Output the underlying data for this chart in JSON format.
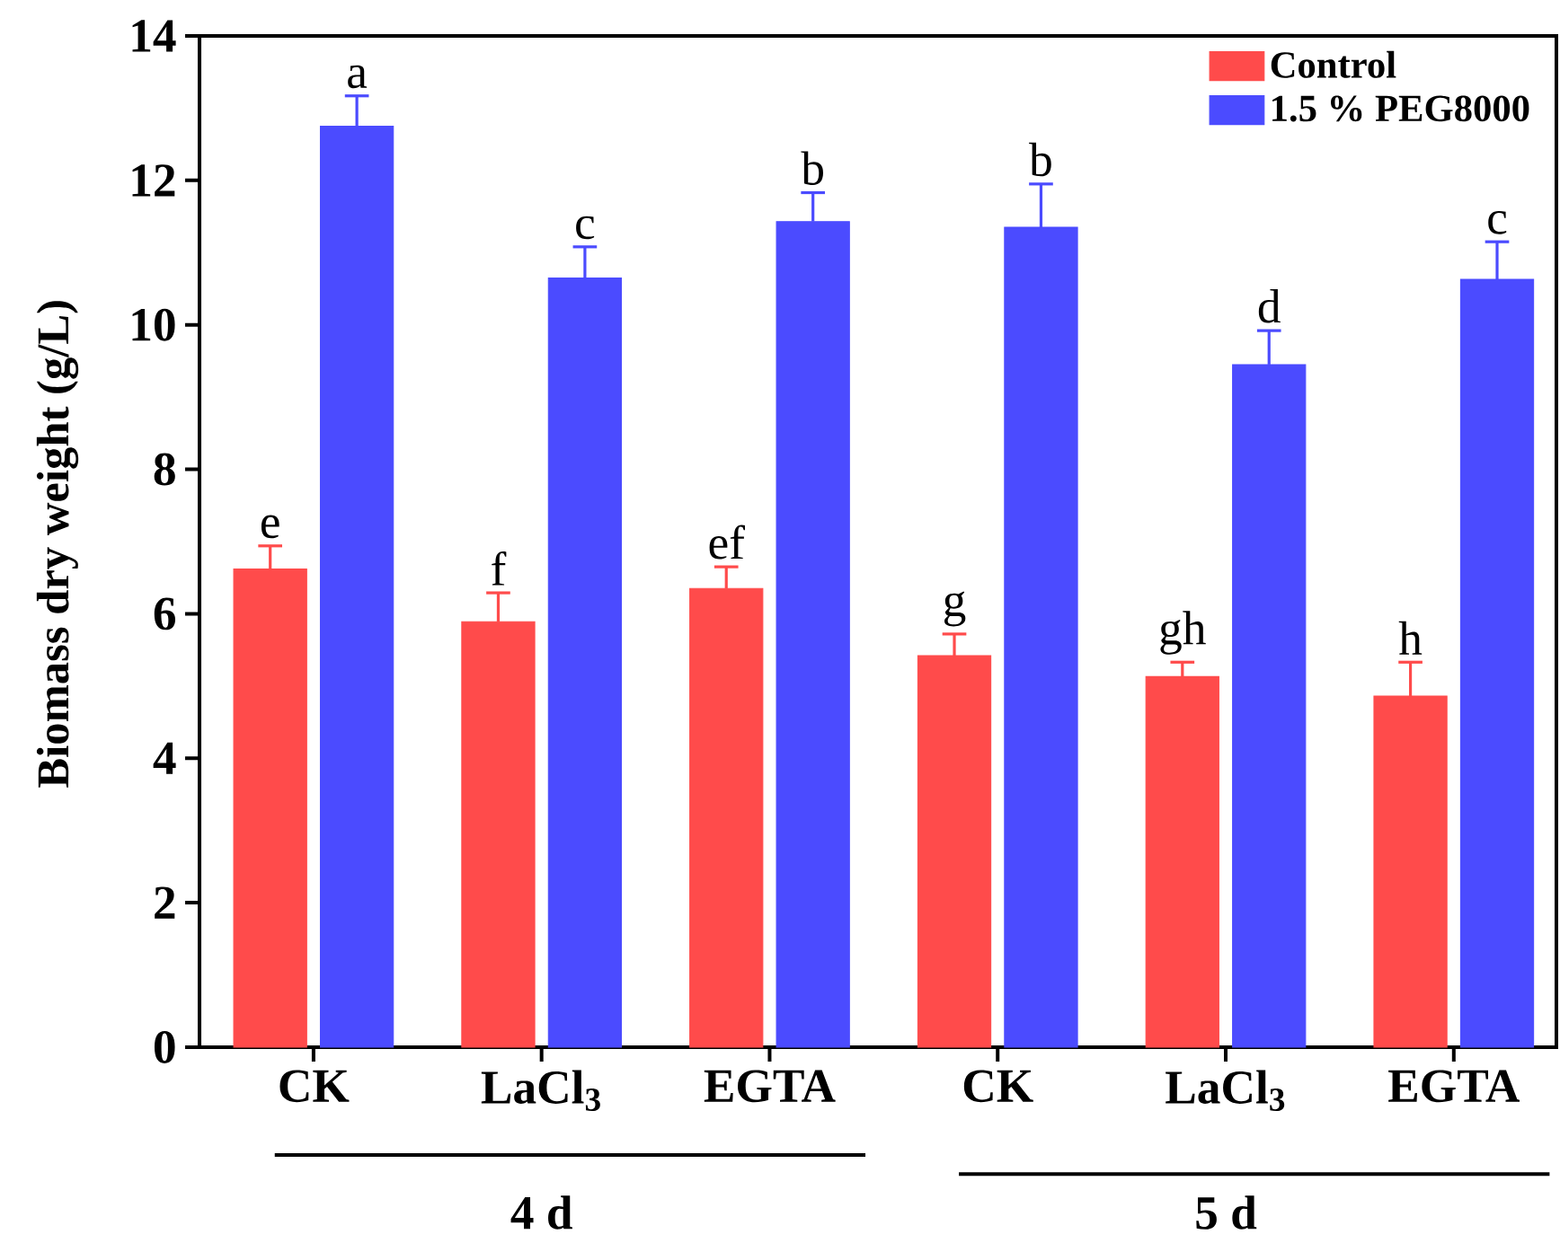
{
  "chart_data": {
    "type": "bar",
    "ylabel": "Biomass dry weight (g/L)",
    "categories": [
      "CK",
      "LaCl$_{3}$",
      "EGTA",
      "CK",
      "LaCl$_{3}$",
      "EGTA"
    ],
    "series": [
      {
        "name": "Control",
        "color": "#ff4b4b",
        "values": [
          6.62,
          5.89,
          6.35,
          5.42,
          5.13,
          4.86
        ],
        "errors": [
          0.32,
          0.4,
          0.3,
          0.3,
          0.2,
          0.47
        ],
        "value_labels": [
          "e",
          "f",
          "ef",
          "g",
          "gh",
          "h"
        ]
      },
      {
        "name": "1.5 % PEG8000",
        "color": "#4b4bff",
        "values": [
          12.75,
          10.65,
          11.43,
          11.35,
          9.45,
          10.63
        ],
        "errors": [
          0.42,
          0.43,
          0.4,
          0.6,
          0.47,
          0.52
        ],
        "value_labels": [
          "a",
          "c",
          "b",
          "b",
          "d",
          "c"
        ]
      }
    ],
    "ylim": [
      0,
      14
    ],
    "yticks": [
      0,
      2,
      4,
      6,
      8,
      10,
      12,
      14
    ],
    "legend": "top right",
    "grid": false,
    "annotations": [
      "4 d",
      "5 d"
    ]
  }
}
